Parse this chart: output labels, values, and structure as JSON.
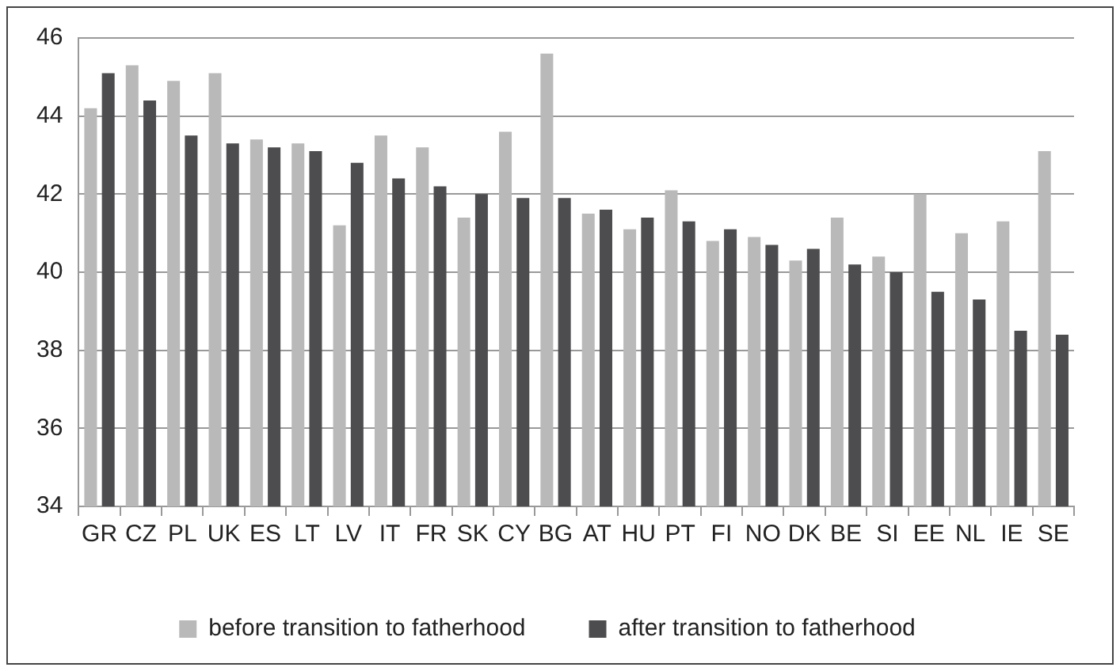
{
  "chart_data": {
    "type": "bar",
    "categories": [
      "GR",
      "CZ",
      "PL",
      "UK",
      "ES",
      "LT",
      "LV",
      "IT",
      "FR",
      "SK",
      "CY",
      "BG",
      "AT",
      "HU",
      "PT",
      "FI",
      "NO",
      "DK",
      "BE",
      "SI",
      "EE",
      "NL",
      "IE",
      "SE"
    ],
    "series": [
      {
        "name": "before transition to fatherhood",
        "color": "#b9b9b9",
        "values": [
          44.2,
          45.3,
          44.9,
          45.1,
          43.4,
          43.3,
          41.2,
          43.5,
          43.2,
          41.4,
          43.6,
          45.6,
          41.5,
          41.1,
          42.1,
          40.8,
          40.9,
          40.3,
          41.4,
          40.4,
          42.0,
          41.0,
          41.3,
          43.1
        ]
      },
      {
        "name": "after transition to fatherhood",
        "color": "#4d4d4f",
        "values": [
          45.1,
          44.4,
          43.5,
          43.3,
          43.2,
          43.1,
          42.8,
          42.4,
          42.2,
          42.0,
          41.9,
          41.9,
          41.6,
          41.4,
          41.3,
          41.1,
          40.7,
          40.6,
          40.2,
          40.0,
          39.5,
          39.3,
          38.5,
          38.4
        ]
      }
    ],
    "ylim": [
      34,
      46
    ],
    "yticks": [
      34,
      36,
      38,
      40,
      42,
      44,
      46
    ],
    "grid": "y",
    "legend": "bottom"
  }
}
